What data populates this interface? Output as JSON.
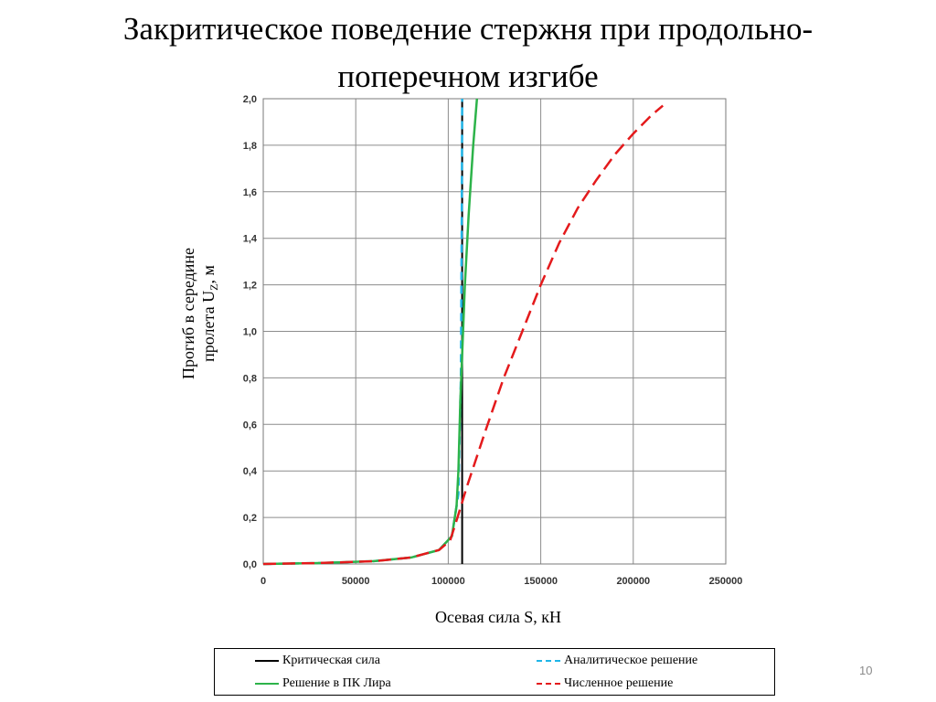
{
  "slide": {
    "title_line1": "Закритическое поведение стержня при продольно-",
    "title_line2": "поперечном изгибе",
    "number": "10"
  },
  "colors": {
    "critical": "#000000",
    "analytical": "#1fb5e8",
    "lira": "#2db34a",
    "numerical": "#e41a1c",
    "grid": "#8c8c8c"
  },
  "chart_data": {
    "type": "line",
    "xlabel": "Осевая сила S, кН",
    "ylabel_line1": "Прогиб в середине",
    "ylabel_line2": "пролета U",
    "ylabel_subscript": "Z",
    "ylabel_unit": ", м",
    "xlim": [
      0,
      250000
    ],
    "ylim": [
      0,
      2.0
    ],
    "x_ticks": [
      0,
      50000,
      100000,
      150000,
      200000,
      250000
    ],
    "x_tick_labels": [
      "0",
      "50000",
      "100000",
      "150000",
      "200000",
      "250000"
    ],
    "y_ticks": [
      0,
      0.2,
      0.4,
      0.6,
      0.8,
      1.0,
      1.2,
      1.4,
      1.6,
      1.8,
      2.0
    ],
    "y_tick_labels": [
      "0,0",
      "0,2",
      "0,4",
      "0,6",
      "0,8",
      "1,0",
      "1,2",
      "1,4",
      "1,6",
      "1,8",
      "2,0"
    ],
    "grid": true,
    "legend_position": "bottom",
    "series": [
      {
        "name": "Критическая сила",
        "key": "critical",
        "style": "solid",
        "points": [
          [
            107500,
            0
          ],
          [
            107500,
            2.0
          ]
        ]
      },
      {
        "name": "Аналитическое решение",
        "key": "analytical",
        "style": "dashed",
        "points": [
          [
            0,
            0
          ],
          [
            30000,
            0.004
          ],
          [
            60000,
            0.012
          ],
          [
            80000,
            0.028
          ],
          [
            95000,
            0.06
          ],
          [
            102000,
            0.12
          ],
          [
            105500,
            0.3
          ],
          [
            106800,
            0.8
          ],
          [
            107300,
            1.5
          ],
          [
            107500,
            2.0
          ]
        ]
      },
      {
        "name": "Решение в ПК Лира",
        "key": "lira",
        "style": "solid",
        "points": [
          [
            0,
            0
          ],
          [
            30000,
            0.004
          ],
          [
            60000,
            0.012
          ],
          [
            80000,
            0.028
          ],
          [
            95000,
            0.06
          ],
          [
            102000,
            0.12
          ],
          [
            104500,
            0.25
          ],
          [
            105500,
            0.4
          ],
          [
            106500,
            0.7
          ],
          [
            107500,
            0.9
          ],
          [
            109000,
            1.2
          ],
          [
            111000,
            1.5
          ],
          [
            113500,
            1.8
          ],
          [
            115500,
            2.0
          ]
        ]
      },
      {
        "name": "Численное решение",
        "key": "numerical",
        "style": "dashed",
        "points": [
          [
            0,
            0
          ],
          [
            30000,
            0.004
          ],
          [
            60000,
            0.012
          ],
          [
            80000,
            0.028
          ],
          [
            95000,
            0.06
          ],
          [
            101000,
            0.1
          ],
          [
            105000,
            0.2
          ],
          [
            110000,
            0.33
          ],
          [
            120000,
            0.57
          ],
          [
            130000,
            0.8
          ],
          [
            140000,
            1.0
          ],
          [
            150000,
            1.2
          ],
          [
            160000,
            1.38
          ],
          [
            170000,
            1.53
          ],
          [
            180000,
            1.65
          ],
          [
            190000,
            1.76
          ],
          [
            200000,
            1.85
          ],
          [
            210000,
            1.93
          ],
          [
            216000,
            1.97
          ]
        ]
      }
    ]
  }
}
